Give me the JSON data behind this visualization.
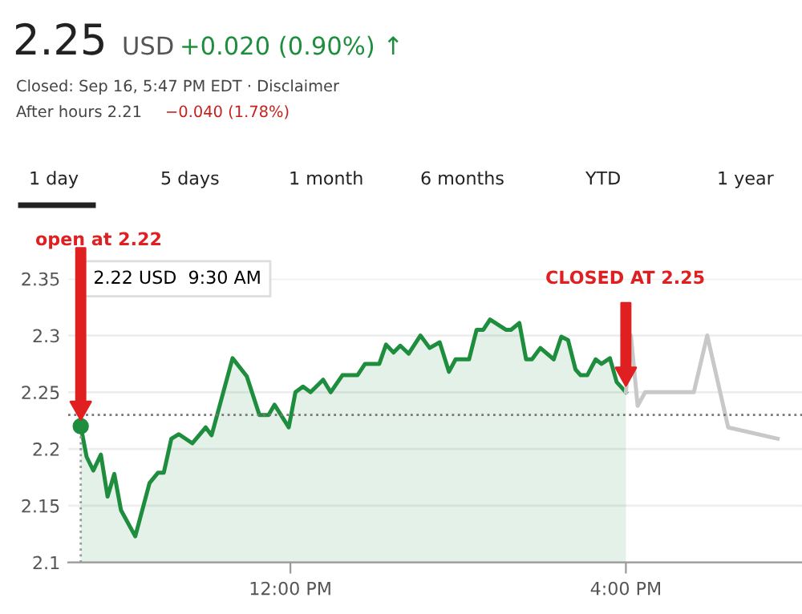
{
  "chart_data": {
    "type": "area",
    "title": "2.25",
    "annotations": [
      "USD",
      "+0.020 (0.90%) ↑",
      "Closed: Sep 16, 5:47 PM EDT · Disclaimer",
      "After hours 2.21",
      "−0.040 (1.78%)",
      "1 day",
      "5 days",
      "1 month",
      "6 months",
      "YTD",
      "1 year",
      "open at 2.22",
      "CLOSED AT 2.25",
      "2.22 USD  9:30 AM"
    ],
    "series": [
      {
        "color": "#1e8e3e",
        "x": [
          9.5,
          9.57,
          9.65,
          9.74,
          9.82,
          9.9,
          9.98,
          10.15,
          10.32,
          10.42,
          10.49,
          10.58,
          10.67,
          10.83,
          10.99,
          11.06,
          11.31,
          11.48,
          11.63,
          11.74,
          11.81,
          11.98,
          12.06,
          12.15,
          12.24,
          12.39,
          12.48,
          12.62,
          12.8,
          12.89,
          13.06,
          13.14,
          13.23,
          13.31,
          13.41,
          13.55,
          13.66,
          13.78,
          13.89,
          13.97,
          14.13,
          14.22,
          14.3,
          14.38,
          14.57,
          14.63,
          14.73,
          14.81,
          14.88,
          14.98,
          15.14,
          15.23,
          15.31,
          15.4,
          15.46,
          15.54,
          15.64,
          15.71,
          15.81,
          15.89,
          16.0
        ],
        "values": [
          2.22,
          2.193,
          2.181,
          2.195,
          2.158,
          2.178,
          2.146,
          2.123,
          2.17,
          2.179,
          2.179,
          2.209,
          2.213,
          2.205,
          2.219,
          2.212,
          2.28,
          2.264,
          2.23,
          2.23,
          2.239,
          2.219,
          2.25,
          2.255,
          2.25,
          2.261,
          2.25,
          2.265,
          2.265,
          2.275,
          2.275,
          2.292,
          2.285,
          2.291,
          2.284,
          2.3,
          2.289,
          2.294,
          2.268,
          2.279,
          2.279,
          2.305,
          2.305,
          2.314,
          2.305,
          2.305,
          2.311,
          2.279,
          2.279,
          2.289,
          2.279,
          2.299,
          2.296,
          2.27,
          2.265,
          2.265,
          2.279,
          2.275,
          2.28,
          2.259,
          2.25
        ]
      },
      {
        "type": "line",
        "color": "#c8c8c8",
        "x": [
          16.0,
          16.06,
          16.14,
          16.23,
          16.81,
          16.97,
          17.22,
          17.81
        ],
        "values": [
          2.25,
          2.3,
          2.238,
          2.25,
          2.25,
          2.3,
          2.219,
          2.209
        ]
      },
      {
        "type": "scatter",
        "color": "#1e8e3e",
        "x": [
          9.5
        ],
        "values": [
          2.22
        ]
      }
    ],
    "ref_lines": [
      {
        "axis": "y",
        "value": 2.23,
        "color": "#777777",
        "line_style": "dotted"
      },
      {
        "axis": "x",
        "value": 9.5,
        "color": "#999999",
        "line_style": "dotted"
      }
    ],
    "xlim": [
      9.35,
      18.1
    ],
    "xticks": [
      {
        "value": 12,
        "label": "12:00 PM"
      },
      {
        "value": 16,
        "label": "4:00 PM"
      }
    ],
    "ylim": [
      2.1,
      2.35
    ],
    "yticks": [
      2.1,
      2.15,
      2.2,
      2.25,
      2.3,
      2.35
    ],
    "grid": "y"
  }
}
